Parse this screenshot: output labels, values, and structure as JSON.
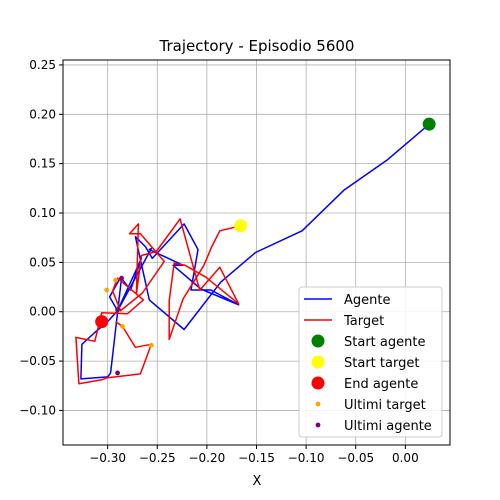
{
  "chart_data": {
    "type": "line",
    "title": "Trajectory - Episodio 5600",
    "xlabel": "X",
    "ylabel": "",
    "xlim": [
      -0.345,
      0.045
    ],
    "ylim": [
      -0.135,
      0.255
    ],
    "grid": true,
    "legend_position": "lower-right",
    "x_ticks": [
      -0.3,
      -0.25,
      -0.2,
      -0.15,
      -0.1,
      -0.05,
      0.0
    ],
    "x_tick_labels": [
      "−0.30",
      "−0.25",
      "−0.20",
      "−0.15",
      "−0.10",
      "−0.05",
      "0.00"
    ],
    "y_ticks": [
      -0.1,
      -0.05,
      0.0,
      0.05,
      0.1,
      0.15,
      0.2,
      0.25
    ],
    "y_tick_labels": [
      "−0.10",
      "−0.05",
      "0.00",
      "0.05",
      "0.10",
      "0.15",
      "0.20",
      "0.25"
    ],
    "series": [
      {
        "name": "Agente",
        "kind": "line",
        "color": "#0000ff",
        "x": [
          0.024,
          -0.018,
          -0.062,
          -0.104,
          -0.151,
          -0.186,
          -0.223,
          -0.258,
          -0.272,
          -0.262,
          -0.255,
          -0.223,
          -0.209,
          -0.216,
          -0.196,
          -0.168,
          -0.206,
          -0.234,
          -0.224,
          -0.258,
          -0.256,
          -0.29,
          -0.298,
          -0.287,
          -0.277,
          -0.276,
          -0.266,
          -0.29,
          -0.301,
          -0.313,
          -0.326,
          -0.327,
          -0.3,
          -0.297,
          -0.286
        ],
        "y": [
          0.19,
          0.154,
          0.123,
          0.082,
          0.06,
          0.03,
          -0.018,
          0.012,
          0.076,
          0.066,
          0.054,
          0.089,
          0.063,
          0.022,
          0.022,
          0.007,
          0.023,
          0.047,
          0.047,
          0.063,
          0.064,
          0.001,
          0.015,
          0.035,
          0.022,
          0.025,
          0.054,
          0.001,
          -0.011,
          -0.021,
          -0.033,
          -0.068,
          -0.066,
          -0.062,
          0.034
        ]
      },
      {
        "name": "Target",
        "kind": "line",
        "color": "#ff0000",
        "x": [
          -0.166,
          -0.187,
          -0.195,
          -0.203,
          -0.224,
          -0.238,
          -0.238,
          -0.233,
          -0.222,
          -0.201,
          -0.168,
          -0.187,
          -0.207,
          -0.209,
          -0.227,
          -0.251,
          -0.266,
          -0.271,
          -0.269,
          -0.278,
          -0.267,
          -0.243,
          -0.265,
          -0.287,
          -0.295,
          -0.29,
          -0.264,
          -0.28,
          -0.306,
          -0.313,
          -0.332,
          -0.329,
          -0.306,
          -0.301,
          -0.267,
          -0.256,
          -0.272,
          -0.285,
          -0.292
        ],
        "y": [
          0.087,
          0.082,
          0.066,
          0.047,
          0.013,
          -0.028,
          0.011,
          0.049,
          0.047,
          0.035,
          0.008,
          0.045,
          0.022,
          0.028,
          0.094,
          0.061,
          0.057,
          0.018,
          0.089,
          0.079,
          0.079,
          0.051,
          0.019,
          0.001,
          0.021,
          0.034,
          0.012,
          -0.002,
          -0.001,
          -0.03,
          -0.026,
          -0.073,
          -0.069,
          -0.067,
          -0.063,
          -0.033,
          -0.036,
          -0.015,
          -0.01
        ]
      }
    ],
    "markers": [
      {
        "name": "Start agente",
        "color": "#008000",
        "size": "large",
        "x": 0.024,
        "y": 0.19
      },
      {
        "name": "Start target",
        "color": "#ffff00",
        "size": "large",
        "x": -0.166,
        "y": 0.087
      },
      {
        "name": "End agente",
        "color": "#ff0000",
        "size": "large",
        "x": -0.306,
        "y": -0.01
      }
    ],
    "scatter": [
      {
        "name": "Ultimi target",
        "color": "#ffa500",
        "x": [
          -0.256,
          -0.285,
          -0.292,
          -0.301,
          -0.305
        ],
        "y": [
          -0.034,
          -0.015,
          0.032,
          0.022,
          -0.012
        ]
      },
      {
        "name": "Ultimi agente",
        "color": "#800080",
        "x": [
          -0.29,
          -0.286,
          -0.29
        ],
        "y": [
          -0.062,
          0.034,
          0.002
        ]
      }
    ]
  }
}
